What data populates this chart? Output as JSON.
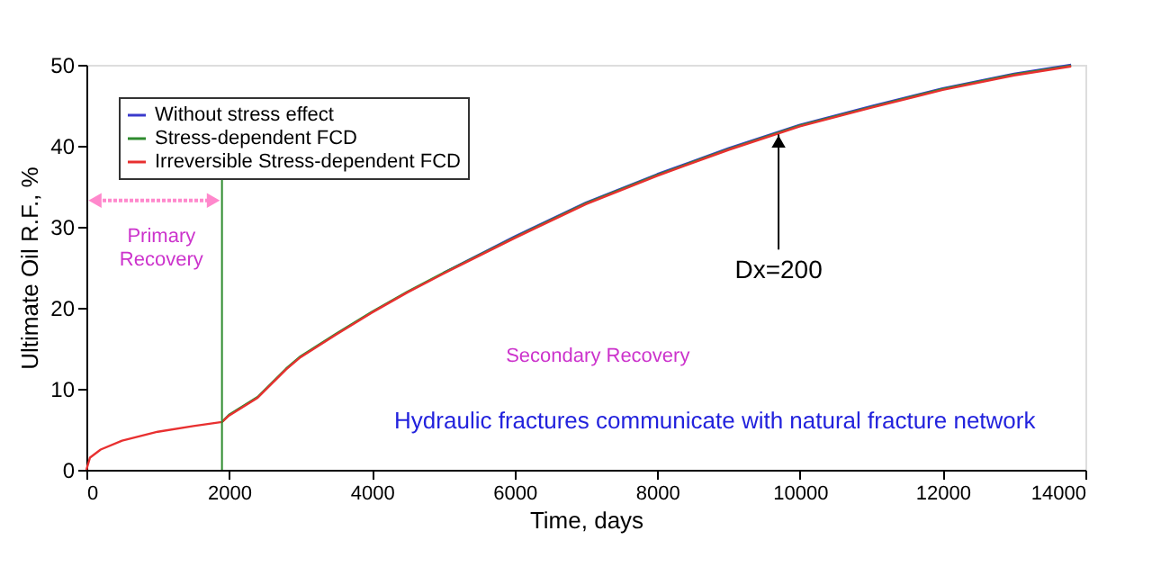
{
  "chart_data": {
    "type": "line",
    "xlabel": "Time, days",
    "ylabel": "Ultimate Oil R.F., %",
    "x": [
      0,
      50,
      200,
      500,
      1000,
      1500,
      1900,
      2000,
      2400,
      2800,
      3000,
      3500,
      4000,
      4500,
      5000,
      6000,
      7000,
      8000,
      9000,
      10000,
      11000,
      12000,
      13000,
      13800
    ],
    "series": [
      {
        "name": "Without stress effect",
        "color": "#3a3acc",
        "values": [
          null,
          null,
          null,
          null,
          null,
          null,
          null,
          null,
          null,
          null,
          null,
          null,
          null,
          null,
          24.3,
          28.8,
          33,
          36.5,
          39.7,
          42.6,
          44.9,
          47.1,
          48.9,
          50
        ]
      },
      {
        "name": "Stress-dependent FCD",
        "color": "#2e8b2e",
        "values": [
          null,
          null,
          null,
          null,
          null,
          null,
          5.9,
          6.8,
          9,
          12.5,
          14,
          16.8,
          19.5,
          22,
          24.3,
          28.7,
          32.9,
          36.4,
          39.6,
          42.5,
          44.8,
          47,
          48.8,
          49.9
        ]
      },
      {
        "name": "Irreversible Stress-dependent FCD",
        "color": "#e83030",
        "values": [
          0,
          1.5,
          2.5,
          3.6,
          4.7,
          5.4,
          5.9,
          6.7,
          8.9,
          12.4,
          13.9,
          16.7,
          19.4,
          21.9,
          24.2,
          28.6,
          32.8,
          36.3,
          39.5,
          42.4,
          44.7,
          46.9,
          48.7,
          49.8
        ]
      }
    ],
    "xlim": [
      0,
      14000
    ],
    "xticks": [
      0,
      2000,
      4000,
      6000,
      8000,
      10000,
      12000,
      14000
    ],
    "ylim": [
      0,
      50
    ],
    "yticks": [
      0,
      10,
      20,
      30,
      40,
      50
    ],
    "grid": false,
    "legend": "top left",
    "marker": "none",
    "line_style": "solid",
    "ref_lines": [
      {
        "axis": "x",
        "value": 1900,
        "color": "#2e8b2e"
      }
    ],
    "annotations": [
      "Primary Recovery",
      "Secondary Recovery",
      {
        "text": "Dx=200",
        "x": 9700,
        "y": 42.3
      },
      "Hydraulic fractures communicate with natural fracture network"
    ]
  }
}
